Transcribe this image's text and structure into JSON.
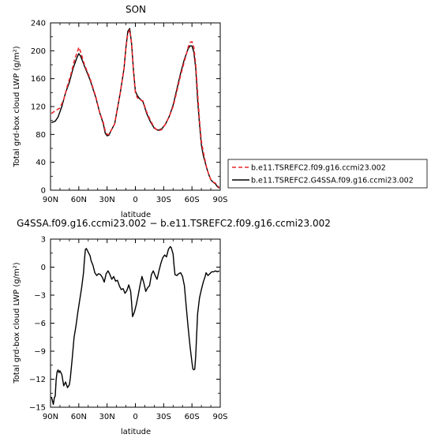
{
  "chart_data": [
    {
      "type": "line",
      "title": "SON",
      "xlabel": "latitude",
      "ylabel": "Total grd-box cloud LWP (g/m²)",
      "xlim": [
        90,
        -90
      ],
      "ylim": [
        0,
        240
      ],
      "x_ticks": [
        90,
        60,
        30,
        0,
        -30,
        -60,
        -90
      ],
      "x_tick_labels": [
        "90N",
        "60N",
        "30N",
        "0",
        "30S",
        "60S",
        "90S"
      ],
      "y_ticks": [
        0,
        40,
        80,
        120,
        160,
        200,
        240
      ],
      "y_tick_labels": [
        "0",
        "40",
        "80",
        "120",
        "160",
        "200",
        "240"
      ],
      "legend_position": "right",
      "series": [
        {
          "name": "b.e11.TSREFC2.f09.g16.ccmi23.002",
          "color": "#e8262b",
          "dash": "dashed",
          "points": [
            [
              89,
              110
            ],
            [
              85,
              114
            ],
            [
              80,
              118
            ],
            [
              76,
              130
            ],
            [
              72,
              150
            ],
            [
              68,
              168
            ],
            [
              64,
              190
            ],
            [
              62,
              196
            ],
            [
              60,
              205
            ],
            [
              58,
              198
            ],
            [
              54,
              180
            ],
            [
              48,
              160
            ],
            [
              42,
              134
            ],
            [
              38,
              112
            ],
            [
              34,
              97
            ],
            [
              32,
              85
            ],
            [
              30,
              80
            ],
            [
              28,
              80
            ],
            [
              26,
              85
            ],
            [
              22,
              95
            ],
            [
              20,
              110
            ],
            [
              16,
              140
            ],
            [
              12,
              175
            ],
            [
              10,
              205
            ],
            [
              8,
              225
            ],
            [
              6,
              230
            ],
            [
              4,
              210
            ],
            [
              2,
              170
            ],
            [
              0,
              140
            ],
            [
              -2,
              133
            ],
            [
              -4,
              130
            ],
            [
              -8,
              128
            ],
            [
              -12,
              112
            ],
            [
              -16,
              100
            ],
            [
              -20,
              90
            ],
            [
              -24,
              85
            ],
            [
              -28,
              87
            ],
            [
              -32,
              95
            ],
            [
              -36,
              106
            ],
            [
              -40,
              120
            ],
            [
              -44,
              142
            ],
            [
              -48,
              165
            ],
            [
              -52,
              185
            ],
            [
              -56,
              205
            ],
            [
              -58,
              212
            ],
            [
              -60,
              213
            ],
            [
              -62,
              205
            ],
            [
              -64,
              180
            ],
            [
              -66,
              140
            ],
            [
              -68,
              100
            ],
            [
              -70,
              70
            ],
            [
              -72,
              55
            ],
            [
              -74,
              42
            ],
            [
              -76,
              30
            ],
            [
              -78,
              22
            ],
            [
              -80,
              15
            ],
            [
              -82,
              12
            ],
            [
              -85,
              10
            ],
            [
              -87,
              6
            ],
            [
              -89,
              4
            ]
          ]
        },
        {
          "name": "b.e11.TSREFC2.G4SSA.f09.g16.ccmi23.002",
          "color": "#000000",
          "dash": "solid",
          "points": [
            [
              89,
              97
            ],
            [
              85,
              99
            ],
            [
              82,
              105
            ],
            [
              78,
              120
            ],
            [
              74,
              140
            ],
            [
              70,
              155
            ],
            [
              66,
              175
            ],
            [
              62,
              190
            ],
            [
              60,
              196
            ],
            [
              58,
              192
            ],
            [
              54,
              178
            ],
            [
              48,
              158
            ],
            [
              42,
              133
            ],
            [
              38,
              112
            ],
            [
              34,
              95
            ],
            [
              32,
              82
            ],
            [
              30,
              78
            ],
            [
              28,
              79
            ],
            [
              26,
              85
            ],
            [
              22,
              95
            ],
            [
              20,
              110
            ],
            [
              16,
              140
            ],
            [
              12,
              175
            ],
            [
              10,
              205
            ],
            [
              8,
              228
            ],
            [
              6,
              232
            ],
            [
              4,
              210
            ],
            [
              2,
              172
            ],
            [
              0,
              142
            ],
            [
              -2,
              136
            ],
            [
              -4,
              132
            ],
            [
              -8,
              127
            ],
            [
              -12,
              110
            ],
            [
              -16,
              98
            ],
            [
              -20,
              89
            ],
            [
              -24,
              86
            ],
            [
              -28,
              88
            ],
            [
              -32,
              95
            ],
            [
              -36,
              106
            ],
            [
              -40,
              122
            ],
            [
              -44,
              145
            ],
            [
              -48,
              168
            ],
            [
              -52,
              188
            ],
            [
              -56,
              203
            ],
            [
              -58,
              207
            ],
            [
              -60,
              207
            ],
            [
              -62,
              198
            ],
            [
              -64,
              175
            ],
            [
              -66,
              130
            ],
            [
              -68,
              95
            ],
            [
              -70,
              65
            ],
            [
              -72,
              50
            ],
            [
              -74,
              40
            ],
            [
              -76,
              30
            ],
            [
              -78,
              22
            ],
            [
              -80,
              15
            ],
            [
              -82,
              12
            ],
            [
              -85,
              9
            ],
            [
              -87,
              5
            ],
            [
              -89,
              3
            ]
          ]
        }
      ]
    },
    {
      "type": "line",
      "title": "G4SSA.f09.g16.ccmi23.002 − b.e11.TSREFC2.f09.g16.ccmi23.002",
      "xlabel": "latitude",
      "ylabel": "Total grd-box cloud LWP (g/m²)",
      "xlim": [
        90,
        -90
      ],
      "ylim": [
        -15,
        3
      ],
      "x_ticks": [
        90,
        60,
        30,
        0,
        -30,
        -60,
        -90
      ],
      "x_tick_labels": [
        "90N",
        "60N",
        "30N",
        "0",
        "30S",
        "60S",
        "90S"
      ],
      "y_ticks": [
        -15,
        -12,
        -9,
        -6,
        -3,
        0,
        3
      ],
      "y_tick_labels": [
        "−15",
        "−12",
        "−9",
        "−6",
        "−3",
        "0",
        "3"
      ],
      "series": [
        {
          "name": "",
          "color": "#000000",
          "dash": "solid",
          "points": [
            [
              89,
              -13.9
            ],
            [
              88,
              -14.3
            ],
            [
              87,
              -14.7
            ],
            [
              86,
              -14.0
            ],
            [
              85,
              -13.8
            ],
            [
              84,
              -12.0
            ],
            [
              83,
              -11.2
            ],
            [
              82,
              -11.0
            ],
            [
              81,
              -11.3
            ],
            [
              80,
              -11.1
            ],
            [
              78,
              -11.5
            ],
            [
              76,
              -12.7
            ],
            [
              74,
              -12.3
            ],
            [
              72,
              -12.9
            ],
            [
              70,
              -12.6
            ],
            [
              69,
              -11.9
            ],
            [
              67,
              -9.8
            ],
            [
              65,
              -7.5
            ],
            [
              63,
              -6.3
            ],
            [
              61,
              -4.8
            ],
            [
              59,
              -3.5
            ],
            [
              57,
              -2.2
            ],
            [
              55,
              -0.6
            ],
            [
              54,
              0.8
            ],
            [
              53,
              1.9
            ],
            [
              52,
              2.0
            ],
            [
              50,
              1.6
            ],
            [
              48,
              1.2
            ],
            [
              47,
              0.7
            ],
            [
              45,
              0.2
            ],
            [
              43,
              -0.6
            ],
            [
              41,
              -0.9
            ],
            [
              39,
              -0.7
            ],
            [
              37,
              -0.8
            ],
            [
              35,
              -1.1
            ],
            [
              33,
              -1.6
            ],
            [
              31,
              -0.7
            ],
            [
              29,
              -0.4
            ],
            [
              27,
              -0.8
            ],
            [
              25,
              -1.3
            ],
            [
              23,
              -1.0
            ],
            [
              21,
              -1.5
            ],
            [
              19,
              -1.4
            ],
            [
              17,
              -2.0
            ],
            [
              15,
              -2.4
            ],
            [
              13,
              -2.3
            ],
            [
              11,
              -2.8
            ],
            [
              9,
              -2.5
            ],
            [
              7,
              -1.9
            ],
            [
              5,
              -2.6
            ],
            [
              4,
              -3.8
            ],
            [
              3,
              -5.3
            ],
            [
              1,
              -4.8
            ],
            [
              -1,
              -4.0
            ],
            [
              -3,
              -3.0
            ],
            [
              -5,
              -1.9
            ],
            [
              -7,
              -1.0
            ],
            [
              -9,
              -1.7
            ],
            [
              -11,
              -2.6
            ],
            [
              -13,
              -2.2
            ],
            [
              -15,
              -2.0
            ],
            [
              -17,
              -0.8
            ],
            [
              -19,
              -0.4
            ],
            [
              -21,
              -0.9
            ],
            [
              -23,
              -1.3
            ],
            [
              -25,
              -0.4
            ],
            [
              -27,
              0.4
            ],
            [
              -29,
              1.0
            ],
            [
              -31,
              1.3
            ],
            [
              -33,
              1.1
            ],
            [
              -35,
              1.9
            ],
            [
              -37,
              2.2
            ],
            [
              -38,
              2.1
            ],
            [
              -40,
              1.4
            ],
            [
              -41,
              0.2
            ],
            [
              -42,
              -0.8
            ],
            [
              -44,
              -0.9
            ],
            [
              -46,
              -0.7
            ],
            [
              -48,
              -0.6
            ],
            [
              -50,
              -1.0
            ],
            [
              -52,
              -2.0
            ],
            [
              -54,
              -4.3
            ],
            [
              -56,
              -6.5
            ],
            [
              -58,
              -8.5
            ],
            [
              -60,
              -10.2
            ],
            [
              -61,
              -10.9
            ],
            [
              -62,
              -11.0
            ],
            [
              -63,
              -10.9
            ],
            [
              -64,
              -9.5
            ],
            [
              -65,
              -7.2
            ],
            [
              -66,
              -5.0
            ],
            [
              -68,
              -3.3
            ],
            [
              -70,
              -2.4
            ],
            [
              -72,
              -1.6
            ],
            [
              -74,
              -1.0
            ],
            [
              -75,
              -0.6
            ],
            [
              -77,
              -0.9
            ],
            [
              -79,
              -0.7
            ],
            [
              -81,
              -0.5
            ],
            [
              -83,
              -0.5
            ],
            [
              -85,
              -0.4
            ],
            [
              -87,
              -0.5
            ],
            [
              -89,
              -0.4
            ]
          ]
        }
      ]
    }
  ]
}
